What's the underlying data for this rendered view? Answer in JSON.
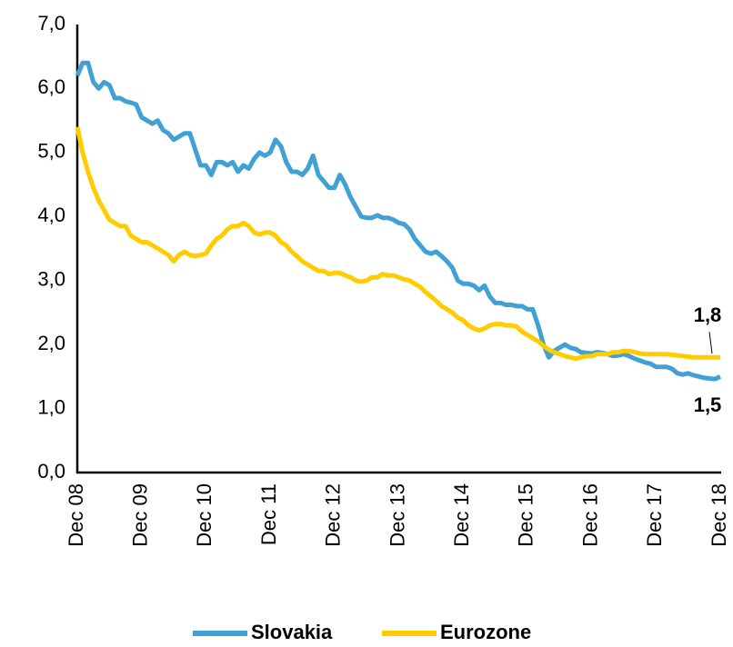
{
  "chart_data": {
    "type": "line",
    "categories": [
      "Dec 08",
      null,
      null,
      null,
      null,
      null,
      null,
      null,
      null,
      null,
      null,
      null,
      "Dec 09",
      null,
      null,
      null,
      null,
      null,
      null,
      null,
      null,
      null,
      null,
      null,
      "Dec 10",
      null,
      null,
      null,
      null,
      null,
      null,
      null,
      null,
      null,
      null,
      null,
      "Dec 11",
      null,
      null,
      null,
      null,
      null,
      null,
      null,
      null,
      null,
      null,
      null,
      "Dec 12",
      null,
      null,
      null,
      null,
      null,
      null,
      null,
      null,
      null,
      null,
      null,
      "Dec 13",
      null,
      null,
      null,
      null,
      null,
      null,
      null,
      null,
      null,
      null,
      null,
      "Dec 14",
      null,
      null,
      null,
      null,
      null,
      null,
      null,
      null,
      null,
      null,
      null,
      "Dec 15",
      null,
      null,
      null,
      null,
      null,
      null,
      null,
      null,
      null,
      null,
      null,
      "Dec 16",
      null,
      null,
      null,
      null,
      null,
      null,
      null,
      null,
      null,
      null,
      null,
      "Dec 17",
      null,
      null,
      null,
      null,
      null,
      null,
      null,
      null,
      null,
      null,
      null,
      "Dec 18"
    ],
    "series": [
      {
        "name": "Slovakia",
        "color": "#41a0d4",
        "values": [
          6.2,
          6.4,
          6.4,
          6.1,
          6.0,
          6.1,
          6.05,
          5.85,
          5.85,
          5.8,
          5.78,
          5.75,
          5.55,
          5.5,
          5.45,
          5.5,
          5.35,
          5.3,
          5.2,
          5.25,
          5.3,
          5.3,
          5.05,
          4.8,
          4.8,
          4.65,
          4.85,
          4.85,
          4.8,
          4.85,
          4.7,
          4.8,
          4.75,
          4.9,
          5.0,
          4.95,
          5.0,
          5.2,
          5.1,
          4.85,
          4.7,
          4.7,
          4.65,
          4.75,
          4.95,
          4.65,
          4.55,
          4.45,
          4.45,
          4.65,
          4.5,
          4.3,
          4.15,
          4.0,
          3.98,
          3.98,
          4.02,
          3.98,
          3.98,
          3.95,
          3.9,
          3.88,
          3.8,
          3.65,
          3.55,
          3.45,
          3.42,
          3.45,
          3.38,
          3.3,
          3.2,
          3.0,
          2.95,
          2.95,
          2.92,
          2.85,
          2.92,
          2.75,
          2.65,
          2.65,
          2.62,
          2.62,
          2.6,
          2.6,
          2.55,
          2.55,
          2.3,
          2.0,
          1.8,
          1.9,
          1.95,
          2.0,
          1.95,
          1.93,
          1.88,
          1.87,
          1.86,
          1.88,
          1.87,
          1.85,
          1.82,
          1.83,
          1.85,
          1.82,
          1.78,
          1.75,
          1.72,
          1.7,
          1.65,
          1.65,
          1.65,
          1.62,
          1.55,
          1.53,
          1.55,
          1.52,
          1.5,
          1.48,
          1.47,
          1.46,
          1.5
        ],
        "value_labels": [
          null,
          null,
          null,
          null,
          null,
          null,
          null,
          null,
          null,
          null,
          null,
          null,
          null,
          null,
          null,
          null,
          null,
          null,
          null,
          null,
          null,
          null,
          null,
          null,
          null,
          null,
          null,
          null,
          null,
          null,
          null,
          null,
          null,
          null,
          null,
          null,
          null,
          null,
          null,
          null,
          null,
          null,
          null,
          null,
          null,
          null,
          null,
          null,
          null,
          null,
          null,
          null,
          null,
          null,
          null,
          null,
          null,
          null,
          null,
          null,
          null,
          null,
          null,
          null,
          null,
          null,
          null,
          null,
          null,
          null,
          null,
          null,
          null,
          null,
          null,
          null,
          null,
          null,
          null,
          null,
          null,
          null,
          null,
          null,
          null,
          null,
          null,
          null,
          null,
          null,
          null,
          null,
          null,
          null,
          null,
          null,
          null,
          null,
          null,
          null,
          null,
          null,
          null,
          null,
          null,
          null,
          null,
          null,
          null,
          null,
          null,
          null,
          null,
          null,
          null,
          null,
          null,
          null,
          null,
          null,
          "1,5"
        ]
      },
      {
        "name": "Eurozone",
        "color": "#ffcc00",
        "values": [
          5.4,
          5.0,
          4.7,
          4.45,
          4.25,
          4.1,
          3.95,
          3.9,
          3.85,
          3.85,
          3.7,
          3.65,
          3.6,
          3.6,
          3.55,
          3.5,
          3.45,
          3.4,
          3.3,
          3.4,
          3.45,
          3.4,
          3.38,
          3.4,
          3.42,
          3.55,
          3.65,
          3.7,
          3.8,
          3.85,
          3.85,
          3.9,
          3.85,
          3.75,
          3.72,
          3.75,
          3.75,
          3.7,
          3.6,
          3.55,
          3.45,
          3.38,
          3.3,
          3.25,
          3.2,
          3.15,
          3.15,
          3.1,
          3.12,
          3.12,
          3.08,
          3.05,
          3.0,
          2.98,
          3.0,
          3.05,
          3.05,
          3.1,
          3.08,
          3.08,
          3.05,
          3.02,
          3.0,
          2.95,
          2.9,
          2.82,
          2.75,
          2.68,
          2.6,
          2.55,
          2.5,
          2.42,
          2.38,
          2.3,
          2.25,
          2.22,
          2.25,
          2.3,
          2.32,
          2.32,
          2.3,
          2.3,
          2.28,
          2.2,
          2.15,
          2.1,
          2.05,
          1.98,
          1.92,
          1.88,
          1.85,
          1.82,
          1.8,
          1.78,
          1.8,
          1.82,
          1.82,
          1.85,
          1.85,
          1.85,
          1.88,
          1.88,
          1.9,
          1.9,
          1.88,
          1.86,
          1.85,
          1.85,
          1.85,
          1.85,
          1.85,
          1.84,
          1.83,
          1.82,
          1.81,
          1.8,
          1.8,
          1.8,
          1.8,
          1.8,
          1.8
        ],
        "value_labels": [
          null,
          null,
          null,
          null,
          null,
          null,
          null,
          null,
          null,
          null,
          null,
          null,
          null,
          null,
          null,
          null,
          null,
          null,
          null,
          null,
          null,
          null,
          null,
          null,
          null,
          null,
          null,
          null,
          null,
          null,
          null,
          null,
          null,
          null,
          null,
          null,
          null,
          null,
          null,
          null,
          null,
          null,
          null,
          null,
          null,
          null,
          null,
          null,
          null,
          null,
          null,
          null,
          null,
          null,
          null,
          null,
          null,
          null,
          null,
          null,
          null,
          null,
          null,
          null,
          null,
          null,
          null,
          null,
          null,
          null,
          null,
          null,
          null,
          null,
          null,
          null,
          null,
          null,
          null,
          null,
          null,
          null,
          null,
          null,
          null,
          null,
          null,
          null,
          null,
          null,
          null,
          null,
          null,
          null,
          null,
          null,
          null,
          null,
          null,
          null,
          null,
          null,
          null,
          null,
          null,
          null,
          null,
          null,
          null,
          null,
          null,
          null,
          null,
          null,
          null,
          null,
          null,
          null,
          null,
          null,
          "1,8"
        ]
      }
    ],
    "ylim": [
      0,
      7
    ],
    "yticks": [
      {
        "value": 0,
        "label": "0,0"
      },
      {
        "value": 1,
        "label": "1,0"
      },
      {
        "value": 2,
        "label": "2,0"
      },
      {
        "value": 3,
        "label": "3,0"
      },
      {
        "value": 4,
        "label": "4,0"
      },
      {
        "value": 5,
        "label": "5,0"
      },
      {
        "value": 6,
        "label": "6,0"
      },
      {
        "value": 7,
        "label": "7,0"
      }
    ],
    "grid": false,
    "legend": "bottom"
  }
}
